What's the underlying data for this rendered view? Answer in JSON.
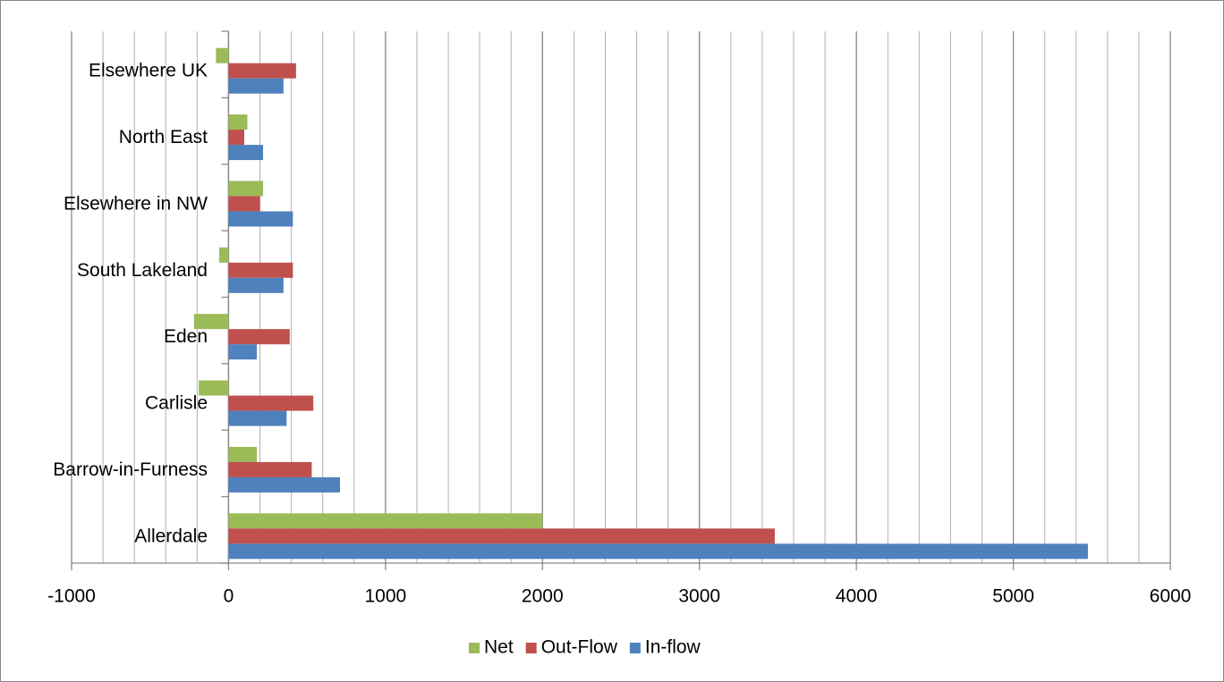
{
  "chart_data": {
    "type": "hbar",
    "categories": [
      "Allerdale",
      "Barrow-in-Furness",
      "Carlisle",
      "Eden",
      "South Lakeland",
      "Elsewhere in NW",
      "North East",
      "Elsewhere UK"
    ],
    "series": [
      {
        "name": "Net",
        "color": "#9bbb59",
        "values": [
          2000,
          180,
          -190,
          -220,
          -60,
          220,
          120,
          -80
        ]
      },
      {
        "name": "Out-Flow",
        "color": "#c0504d",
        "values": [
          3480,
          530,
          540,
          390,
          410,
          200,
          100,
          430
        ]
      },
      {
        "name": "In-flow",
        "color": "#4f81bd",
        "values": [
          5475,
          710,
          370,
          180,
          350,
          410,
          220,
          350
        ]
      }
    ],
    "xlim": [
      -1000,
      6000
    ],
    "xticks": [
      -1000,
      0,
      1000,
      2000,
      3000,
      4000,
      5000,
      6000
    ],
    "x_minor_step": 200,
    "grid": true,
    "legend": "bottom"
  }
}
